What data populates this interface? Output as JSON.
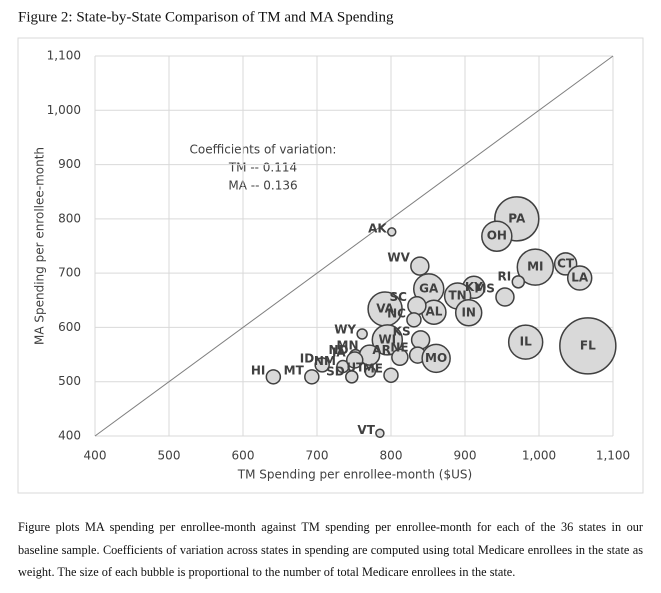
{
  "chart_data": {
    "type": "bubble",
    "title": "Figure 2: State-by-State Comparison of TM and MA Spending",
    "x_label": "TM Spending per enrollee-month ($US)",
    "y_label": "MA Spending per enrollee-month",
    "annotations": [
      "Coefficients of variation:",
      "TM -- 0.114",
      "MA -- 0.136"
    ],
    "caption": "Figure plots MA spending per enrollee-month against TM spending per enrollee-month for each of the 36 states in our baseline sample. Coefficients of variation across states in spending are computed using total Medicare enrollees in the state as weight. The size of each bubble is proportional to the number of total Medicare enrollees in the state.",
    "xlim": [
      400,
      1100
    ],
    "ylim": [
      400,
      1100
    ],
    "xticks": [
      400,
      500,
      600,
      700,
      800,
      900,
      {
        "value": 1000,
        "label": "1,000"
      },
      {
        "value": 1100,
        "label": "1,100"
      }
    ],
    "yticks": [
      400,
      500,
      600,
      700,
      800,
      900,
      {
        "value": 1000,
        "label": "1,000"
      },
      {
        "value": 1100,
        "label": "1,100"
      }
    ],
    "grid": true,
    "diagonal": true,
    "color": "#d9d9d9",
    "edge_color": "#404040",
    "point_labels": [
      "AK",
      "WV",
      "PA",
      "OH",
      "MI",
      "CT",
      "LA",
      "RI",
      "MS",
      "KY",
      "TN",
      "GA",
      "IN",
      "AL",
      "SC",
      "VA",
      "NC",
      "WY",
      "WI",
      "KS",
      "ND",
      "NM",
      "MN",
      "IA",
      "AR",
      "NE",
      "MO",
      "IL",
      "FL",
      "HI",
      "ID",
      "MT",
      "SD",
      "UT",
      "ME",
      "VT"
    ],
    "x": [
      801,
      839,
      970,
      943,
      995,
      1036,
      1055,
      972,
      954,
      912,
      890,
      851,
      905,
      858,
      835,
      792,
      831,
      761,
      795,
      840,
      752,
      735,
      771,
      751,
      812,
      836,
      861,
      982,
      1066,
      641,
      707,
      693,
      747,
      772,
      800,
      785
    ],
    "y": [
      776,
      713,
      800,
      768,
      711,
      717,
      691,
      684,
      656,
      674,
      658,
      671,
      627,
      628,
      640,
      634,
      614,
      588,
      577,
      577,
      548,
      528,
      549,
      540,
      545,
      549,
      543,
      573,
      566,
      509,
      531,
      509,
      509,
      518,
      512,
      405
    ],
    "sizes": [
      16,
      81,
      484,
      225,
      324,
      121,
      144,
      36,
      81,
      121,
      169,
      225,
      169,
      144,
      81,
      289,
      49,
      25,
      225,
      81,
      36,
      36,
      100,
      64,
      64,
      64,
      196,
      289,
      784,
      49,
      49,
      49,
      36,
      25,
      49,
      16
    ]
  }
}
